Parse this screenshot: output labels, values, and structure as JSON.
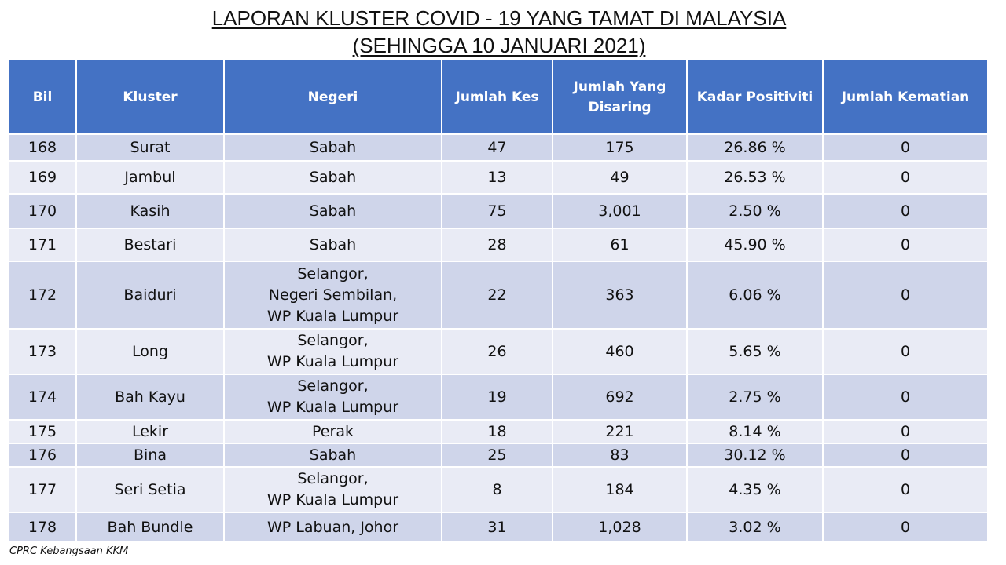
{
  "title": {
    "line1": "LAPORAN KLUSTER COVID - 19 YANG TAMAT DI MALAYSIA",
    "line2": "(SEHINGGA 10 JANUARI 2021)"
  },
  "table": {
    "headers": [
      "Bil",
      "Kluster",
      "Negeri",
      "Jumlah Kes",
      "Jumlah Yang Disaring",
      "Kadar Positiviti",
      "Jumlah Kematian"
    ],
    "rows": [
      {
        "bil": "168",
        "kluster": "Surat",
        "negeri": "Sabah",
        "kes": "47",
        "disaring": "175",
        "positiviti": "26.86 %",
        "kematian": "0"
      },
      {
        "bil": "169",
        "kluster": "Jambul",
        "negeri": "Sabah",
        "kes": "13",
        "disaring": "49",
        "positiviti": "26.53 %",
        "kematian": "0"
      },
      {
        "bil": "170",
        "kluster": "Kasih",
        "negeri": "Sabah",
        "kes": "75",
        "disaring": "3,001",
        "positiviti": "2.50 %",
        "kematian": "0"
      },
      {
        "bil": "171",
        "kluster": "Bestari",
        "negeri": "Sabah",
        "kes": "28",
        "disaring": "61",
        "positiviti": "45.90 %",
        "kematian": "0"
      },
      {
        "bil": "172",
        "kluster": "Baiduri",
        "negeri": "Selangor,\nNegeri Sembilan,\nWP Kuala Lumpur",
        "kes": "22",
        "disaring": "363",
        "positiviti": "6.06 %",
        "kematian": "0"
      },
      {
        "bil": "173",
        "kluster": "Long",
        "negeri": "Selangor,\nWP Kuala Lumpur",
        "kes": "26",
        "disaring": "460",
        "positiviti": "5.65 %",
        "kematian": "0"
      },
      {
        "bil": "174",
        "kluster": "Bah Kayu",
        "negeri": "Selangor,\nWP Kuala Lumpur",
        "kes": "19",
        "disaring": "692",
        "positiviti": "2.75 %",
        "kematian": "0"
      },
      {
        "bil": "175",
        "kluster": "Lekir",
        "negeri": "Perak",
        "kes": "18",
        "disaring": "221",
        "positiviti": "8.14 %",
        "kematian": "0"
      },
      {
        "bil": "176",
        "kluster": "Bina",
        "negeri": "Sabah",
        "kes": "25",
        "disaring": "83",
        "positiviti": "30.12 %",
        "kematian": "0"
      },
      {
        "bil": "177",
        "kluster": "Seri Setia",
        "negeri": "Selangor,\nWP Kuala Lumpur",
        "kes": "8",
        "disaring": "184",
        "positiviti": "4.35 %",
        "kematian": "0"
      },
      {
        "bil": "178",
        "kluster": "Bah Bundle",
        "negeri": "WP Labuan, Johor",
        "kes": "31",
        "disaring": "1,028",
        "positiviti": "3.02 %",
        "kematian": "0"
      }
    ]
  },
  "footer": "CPRC Kebangsaan KKM",
  "colors": {
    "header_bg": "#4472c4",
    "row_dark": "#cfd5ea",
    "row_light": "#e9ebf5"
  }
}
